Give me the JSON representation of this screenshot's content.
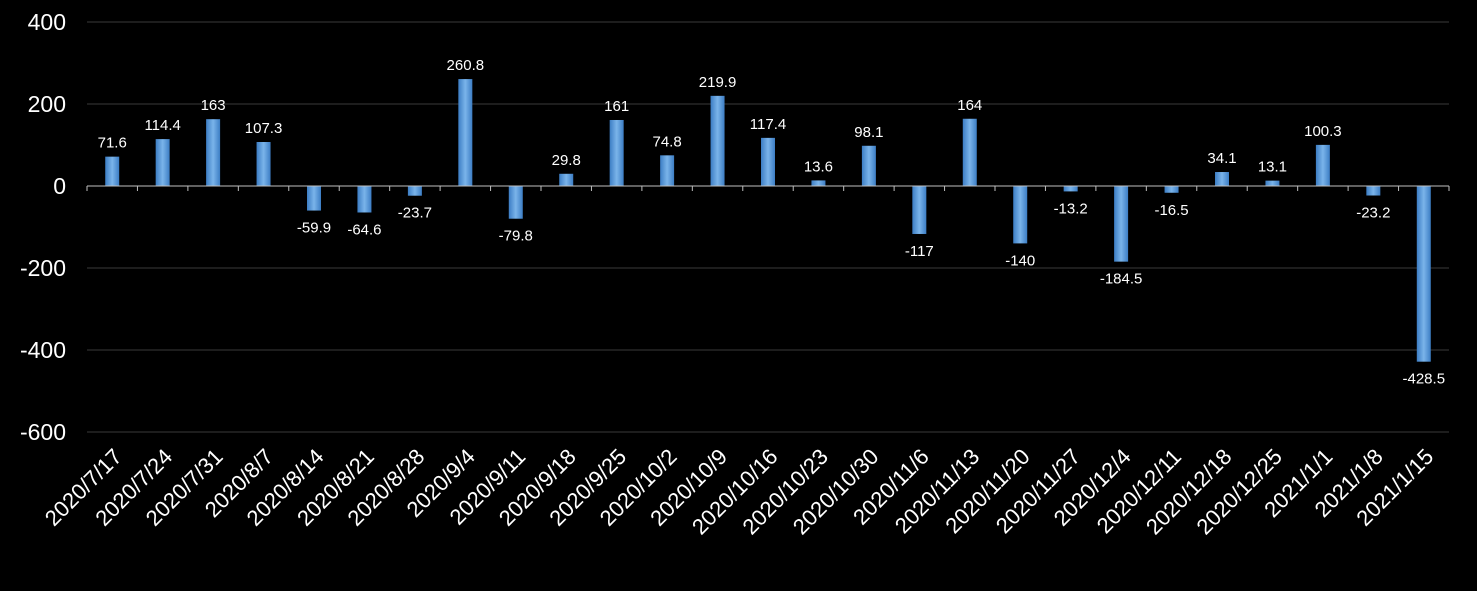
{
  "chart_data": {
    "type": "bar",
    "categories": [
      "2020/7/17",
      "2020/7/24",
      "2020/7/31",
      "2020/8/7",
      "2020/8/14",
      "2020/8/21",
      "2020/8/28",
      "2020/9/4",
      "2020/9/11",
      "2020/9/18",
      "2020/9/25",
      "2020/10/2",
      "2020/10/9",
      "2020/10/16",
      "2020/10/23",
      "2020/10/30",
      "2020/11/6",
      "2020/11/13",
      "2020/11/20",
      "2020/11/27",
      "2020/12/4",
      "2020/12/11",
      "2020/12/18",
      "2020/12/25",
      "2021/1/1",
      "2021/1/8",
      "2021/1/15"
    ],
    "values": [
      71.6,
      114.4,
      163,
      107.3,
      -59.9,
      -64.6,
      -23.7,
      260.8,
      -79.8,
      29.8,
      161,
      74.8,
      219.9,
      117.4,
      13.6,
      98.1,
      -117,
      164,
      -140,
      -13.2,
      -184.5,
      -16.5,
      34.1,
      13.1,
      100.3,
      -23.2,
      -428.5
    ],
    "data_labels": [
      "71.6",
      "114.4",
      "163",
      "107.3",
      "-59.9",
      "-64.6",
      "-23.7",
      "260.8",
      "-79.8",
      "29.8",
      "161",
      "74.8",
      "219.9",
      "117.4",
      "13.6",
      "98.1",
      "-117",
      "164",
      "-140",
      "-13.2",
      "-184.5",
      "-16.5",
      "34.1",
      "13.1",
      "100.3",
      "-23.2",
      "-428.5"
    ],
    "yticks": [
      400,
      200,
      0,
      -200,
      -400,
      -600
    ],
    "ylim": [
      -600,
      400
    ],
    "title": "",
    "xlabel": "",
    "ylabel": "",
    "grid": true,
    "legend": "none",
    "colors": {
      "bar_top": "#6fa8e0",
      "bar_bottom": "#3c7dc4",
      "grid": "#3a3a3a",
      "axis": "#bfbfbf",
      "text": "#ffffff",
      "background": "#000000"
    }
  }
}
